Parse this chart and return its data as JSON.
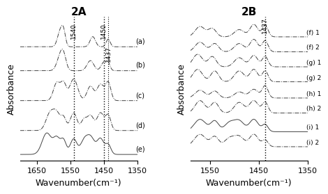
{
  "panel_A": {
    "title": "2A",
    "xlabel": "Wavenumber(cm⁻¹)",
    "ylabel": "Absorbance",
    "xmin": 1350,
    "xmax": 1700,
    "xticks": [
      1650,
      1550,
      1450,
      1350
    ],
    "vlines": [
      1540,
      1450,
      1437
    ],
    "vline_labels": [
      "1540",
      "1450",
      "1437"
    ],
    "curve_labels": [
      "(a)",
      "(b)",
      "(c)",
      "(d)",
      "(e)"
    ],
    "num_curves": 5
  },
  "panel_B": {
    "title": "2B",
    "xlabel": "Wavenumber(cm⁻¹)",
    "ylabel": "Absorbance",
    "xmin": 1350,
    "xmax": 1590,
    "xticks": [
      1550,
      1450,
      1350
    ],
    "vlines": [
      1437
    ],
    "vline_labels": [
      "1437"
    ],
    "curve_labels": [
      "(f) 1",
      "(f) 2",
      "(g) 1",
      "(g) 2",
      "(h) 1",
      "(h) 2",
      "(i) 1",
      "(i) 2"
    ],
    "num_curves": 8
  },
  "line_color": "#444444",
  "bg_color": "#ffffff",
  "title_fontsize": 11,
  "label_fontsize": 9,
  "tick_fontsize": 8
}
